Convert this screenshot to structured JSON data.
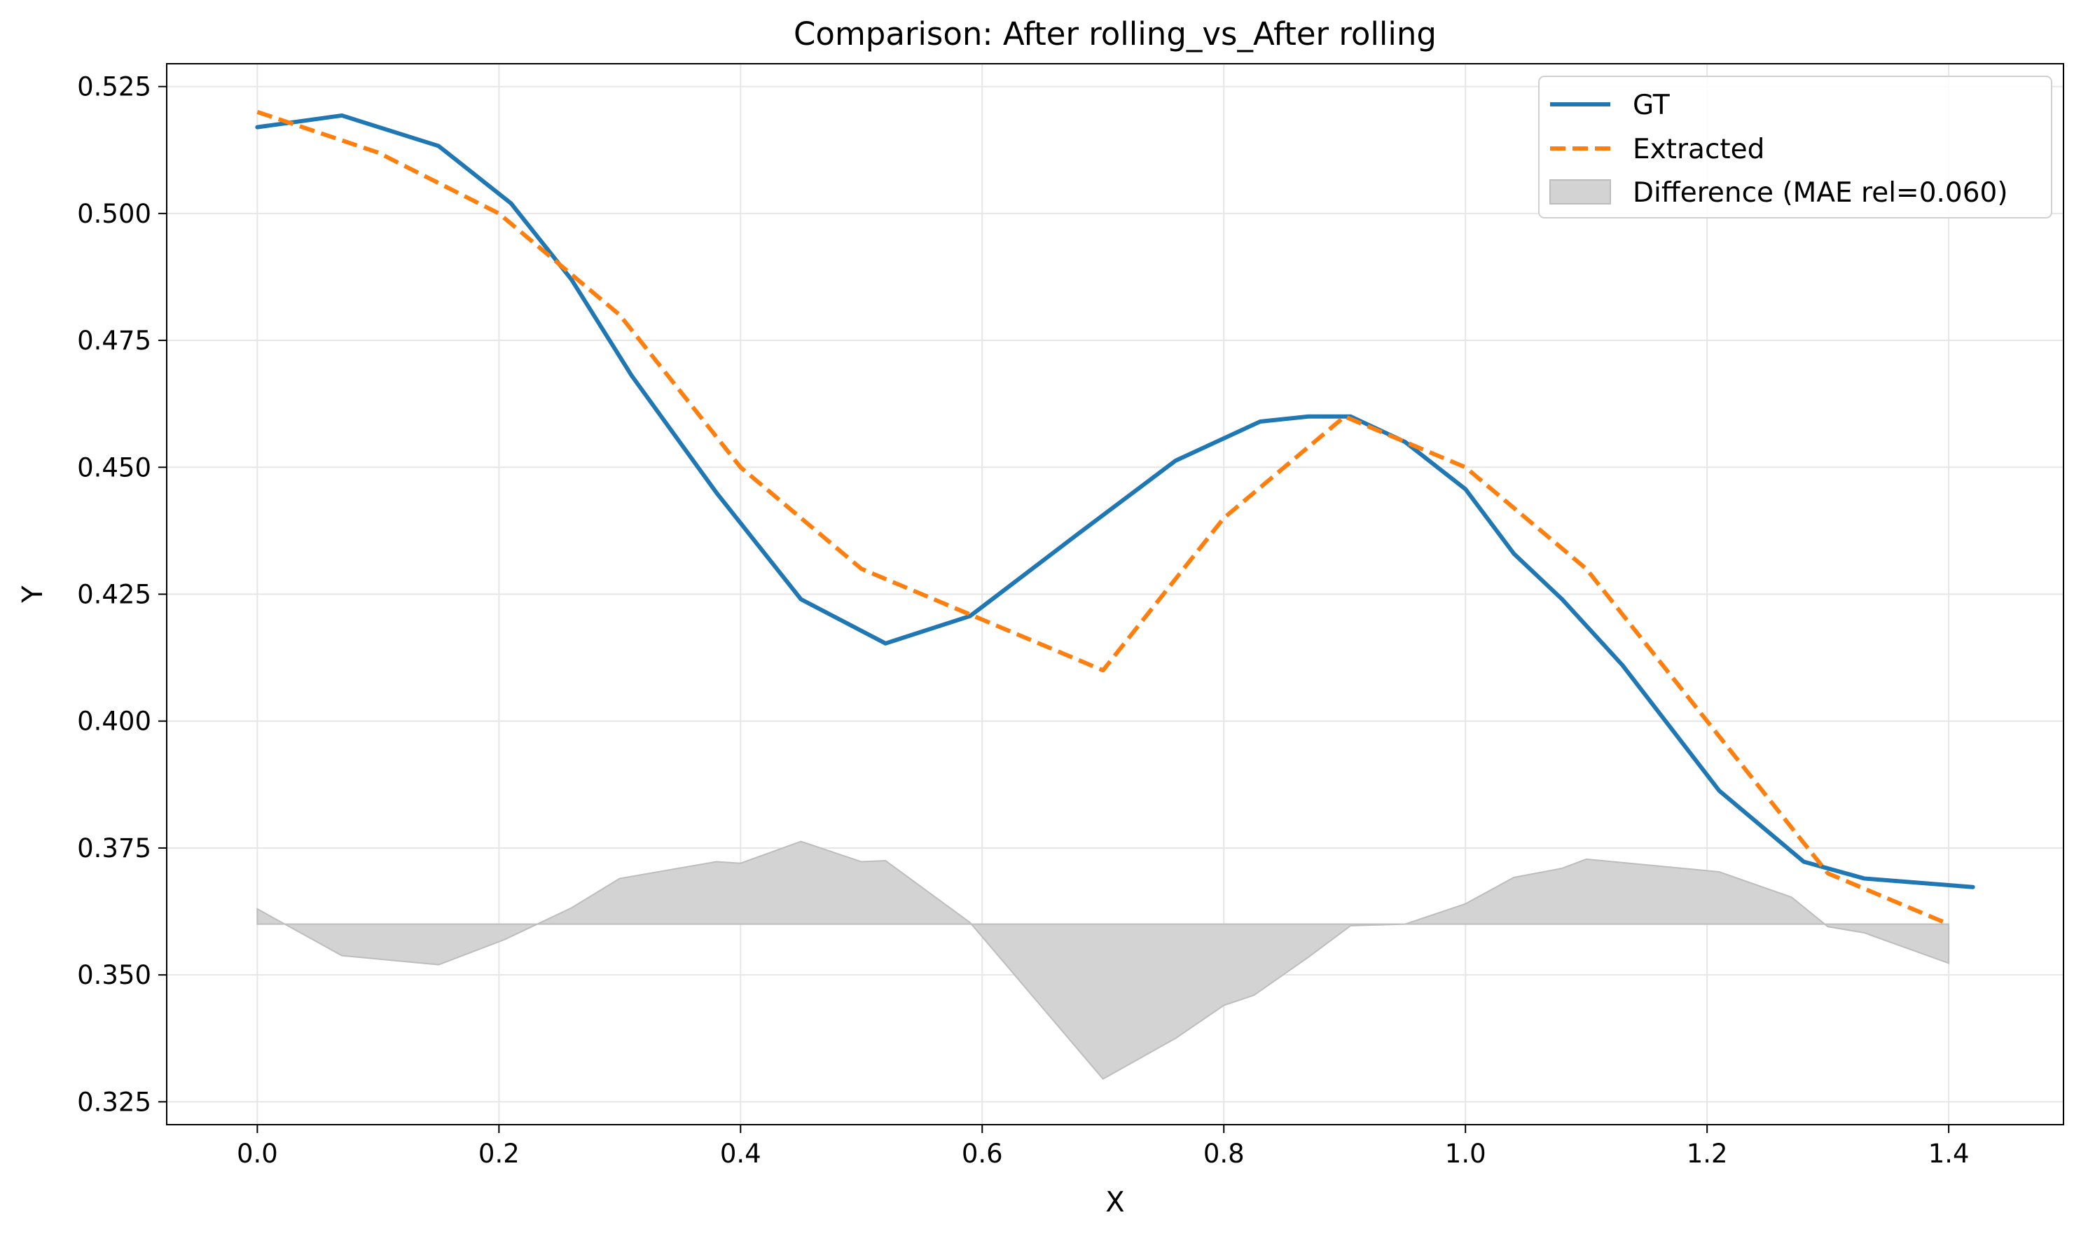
{
  "chart_data": {
    "type": "line",
    "title": "Comparison: After rolling_vs_After rolling",
    "xlabel": "X",
    "ylabel": "Y",
    "xlim": [
      -0.075,
      1.495
    ],
    "ylim": [
      0.3205,
      0.5295
    ],
    "xticks": [
      "0.0",
      "0.2",
      "0.4",
      "0.6",
      "0.8",
      "1.0",
      "1.2",
      "1.4"
    ],
    "xtick_values": [
      0,
      0.2,
      0.4,
      0.6,
      0.8,
      1.0,
      1.2,
      1.4
    ],
    "yticks": [
      "0.325",
      "0.350",
      "0.375",
      "0.400",
      "0.425",
      "0.450",
      "0.475",
      "0.500",
      "0.525"
    ],
    "ytick_values": [
      0.325,
      0.35,
      0.375,
      0.4,
      0.425,
      0.45,
      0.475,
      0.5,
      0.525
    ],
    "grid": true,
    "legend_position": "upper right",
    "series": [
      {
        "name": "GT",
        "style": "solid",
        "color": "#1f77b4",
        "x": [
          0.0,
          0.07,
          0.15,
          0.21,
          0.26,
          0.31,
          0.38,
          0.45,
          0.52,
          0.59,
          0.68,
          0.76,
          0.83,
          0.87,
          0.905,
          0.95,
          1.0,
          1.04,
          1.08,
          1.13,
          1.21,
          1.28,
          1.33,
          1.42
        ],
        "y": [
          0.517,
          0.5193,
          0.5133,
          0.502,
          0.487,
          0.468,
          0.445,
          0.424,
          0.4153,
          0.4207,
          0.437,
          0.4513,
          0.459,
          0.46,
          0.46,
          0.455,
          0.4457,
          0.433,
          0.424,
          0.411,
          0.3863,
          0.3723,
          0.369,
          0.3673
        ]
      },
      {
        "name": "Extracted",
        "style": "dashed",
        "color": "#ff7f0e",
        "x": [
          0.0,
          0.1,
          0.2,
          0.3,
          0.4,
          0.5,
          0.6,
          0.7,
          0.8,
          0.9,
          1.0,
          1.1,
          1.2,
          1.3,
          1.4
        ],
        "y": [
          0.52,
          0.512,
          0.5,
          0.48,
          0.45,
          0.43,
          0.42,
          0.41,
          0.44,
          0.46,
          0.45,
          0.43,
          0.4,
          0.37,
          0.36
        ]
      }
    ],
    "difference": {
      "name": "Difference (MAE rel=0.060)",
      "color": "#d3d3d3",
      "baseline": 0.36,
      "x": [
        0.0,
        0.07,
        0.15,
        0.205,
        0.26,
        0.3,
        0.38,
        0.4,
        0.45,
        0.5,
        0.52,
        0.59,
        0.7,
        0.76,
        0.8,
        0.825,
        0.87,
        0.905,
        0.95,
        1.0,
        1.04,
        1.08,
        1.1,
        1.21,
        1.27,
        1.3,
        1.33,
        1.4
      ],
      "y": [
        0.363,
        0.3538,
        0.352,
        0.357,
        0.3632,
        0.369,
        0.3723,
        0.372,
        0.3763,
        0.3723,
        0.3725,
        0.3603,
        0.3295,
        0.3375,
        0.344,
        0.346,
        0.3535,
        0.3597,
        0.36,
        0.364,
        0.3692,
        0.371,
        0.3728,
        0.3703,
        0.3653,
        0.3595,
        0.3583,
        0.3523
      ]
    }
  }
}
